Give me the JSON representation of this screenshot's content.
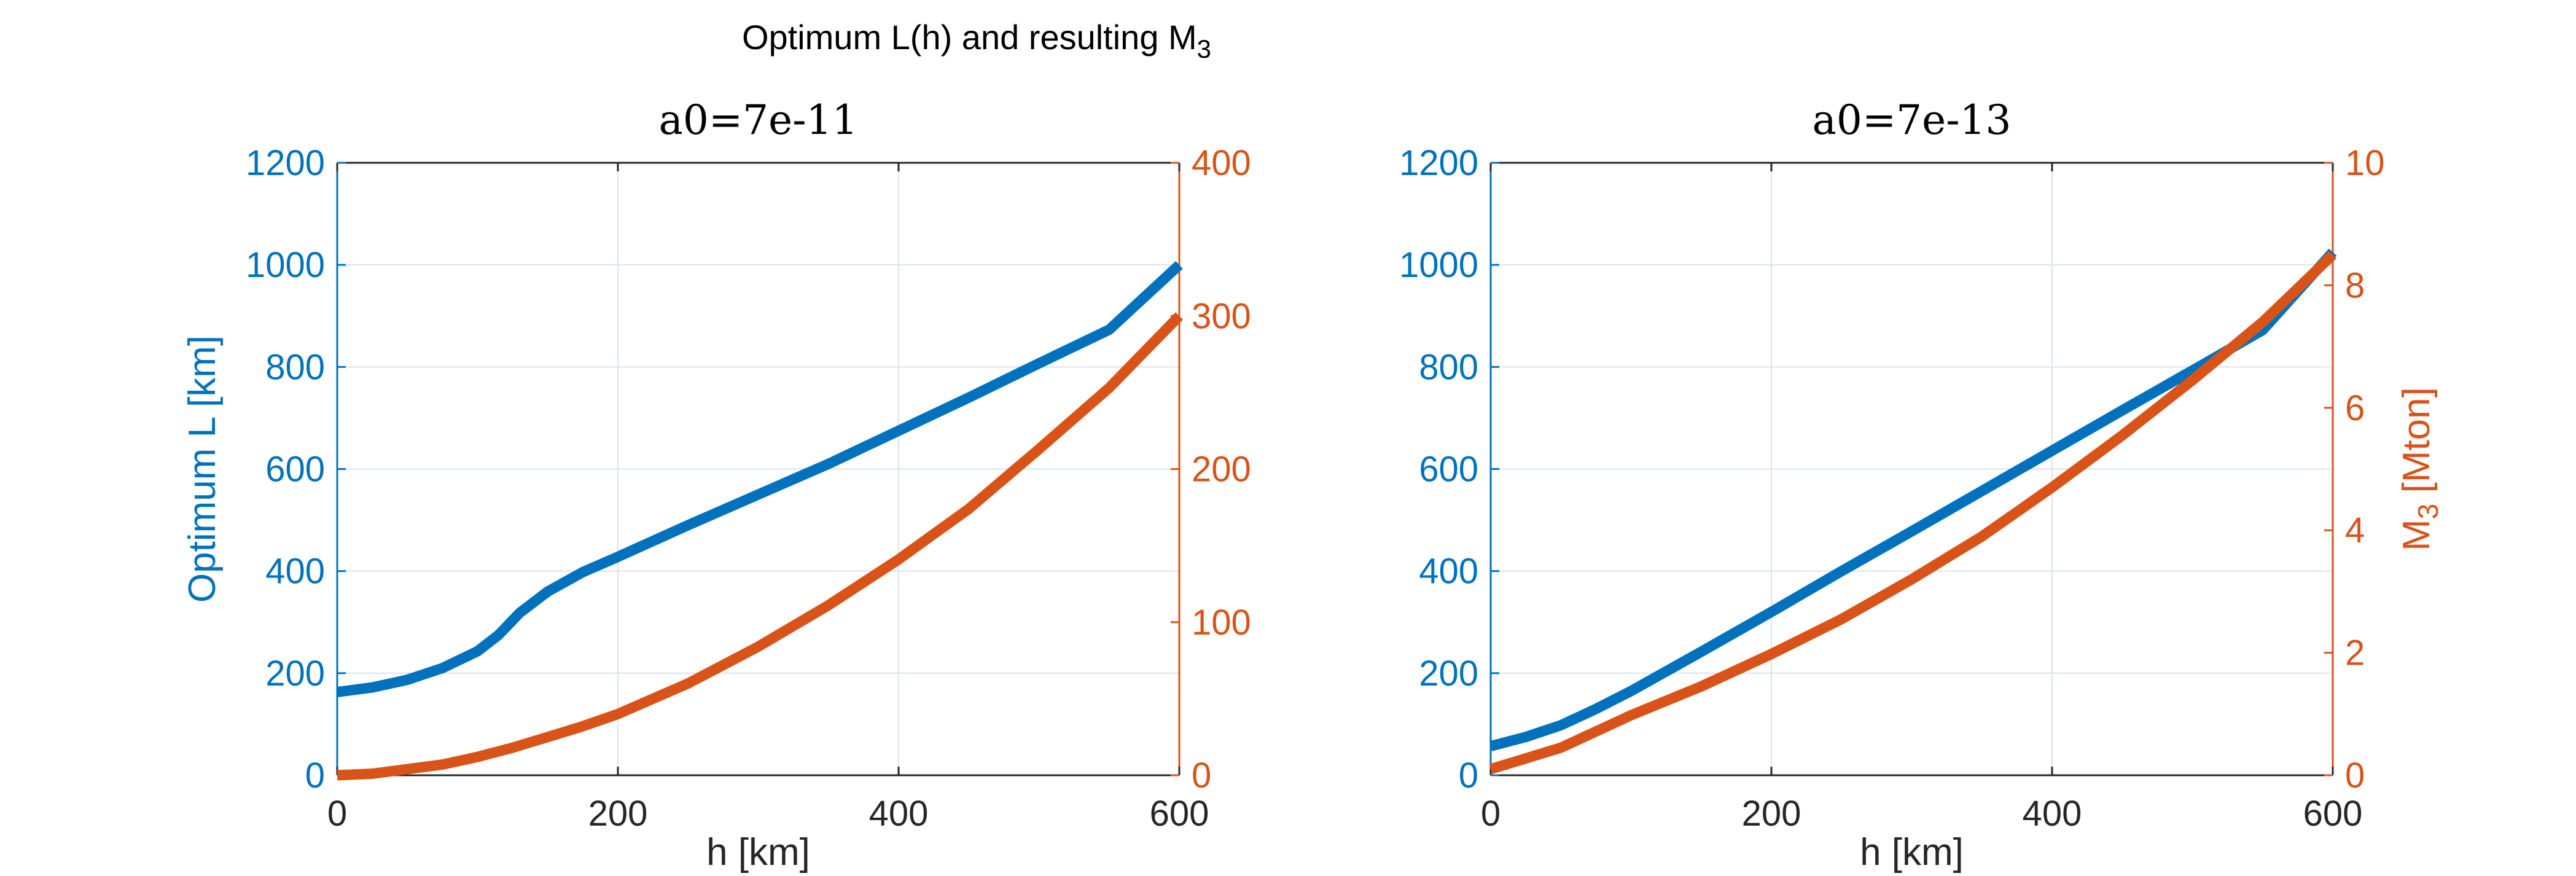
{
  "figure": {
    "title_main": "Optimum L(h) and resulting M",
    "title_sub": "3"
  },
  "colors": {
    "blue": "#0072BD",
    "orange": "#D95319",
    "grid": "#dbe3ea",
    "axis": "#262626"
  },
  "chart_data": [
    {
      "type": "line",
      "title": "a0=7e-11",
      "xlabel": "h [km]",
      "ylabel_left": "Optimum L [km]",
      "ylabel_right": "",
      "xlim": [
        0,
        600
      ],
      "xticks": [
        0,
        200,
        400,
        600
      ],
      "ylim_left": [
        0,
        1200
      ],
      "yticks_left": [
        0,
        200,
        400,
        600,
        800,
        1000,
        1200
      ],
      "ylim_right": [
        0,
        400
      ],
      "yticks_right": [
        0,
        100,
        200,
        300,
        400
      ],
      "grid": true,
      "series": [
        {
          "name": "Optimum L",
          "axis": "left",
          "color": "blue",
          "x": [
            0,
            25,
            50,
            75,
            100,
            115,
            130,
            150,
            175,
            200,
            250,
            300,
            350,
            400,
            450,
            500,
            550,
            600
          ],
          "y": [
            163,
            172,
            187,
            210,
            243,
            275,
            318,
            360,
            398,
            428,
            490,
            550,
            610,
            675,
            740,
            807,
            873,
            1000
          ]
        },
        {
          "name": "M3",
          "axis": "right",
          "color": "orange",
          "x": [
            0,
            25,
            50,
            75,
            100,
            125,
            150,
            175,
            200,
            250,
            300,
            350,
            400,
            450,
            500,
            550,
            600
          ],
          "y": [
            0,
            1,
            4,
            7,
            12,
            18,
            25,
            32,
            40,
            60,
            84,
            111,
            141,
            174,
            213,
            253,
            300
          ]
        }
      ]
    },
    {
      "type": "line",
      "title": "a0=7e-13",
      "xlabel": "h [km]",
      "ylabel_left": "",
      "ylabel_right_main": "M",
      "ylabel_right_sub": "3",
      "ylabel_right_tail": " [Mton]",
      "xlim": [
        0,
        600
      ],
      "xticks": [
        0,
        200,
        400,
        600
      ],
      "ylim_left": [
        0,
        1200
      ],
      "yticks_left": [
        0,
        200,
        400,
        600,
        800,
        1000,
        1200
      ],
      "ylim_right": [
        0,
        10
      ],
      "yticks_right": [
        0,
        2,
        4,
        6,
        8,
        10
      ],
      "grid": true,
      "series": [
        {
          "name": "Optimum L",
          "axis": "left",
          "color": "blue",
          "x": [
            0,
            25,
            50,
            75,
            100,
            150,
            200,
            250,
            300,
            350,
            400,
            450,
            500,
            550,
            600
          ],
          "y": [
            57,
            75,
            98,
            130,
            165,
            242,
            320,
            400,
            478,
            557,
            636,
            715,
            793,
            872,
            1025
          ]
        },
        {
          "name": "M3",
          "axis": "right",
          "color": "orange",
          "x": [
            0,
            50,
            100,
            150,
            200,
            250,
            300,
            350,
            400,
            450,
            500,
            550,
            600
          ],
          "y": [
            0.1,
            0.45,
            0.98,
            1.45,
            1.98,
            2.55,
            3.2,
            3.9,
            4.7,
            5.55,
            6.45,
            7.4,
            8.5
          ]
        }
      ]
    }
  ]
}
